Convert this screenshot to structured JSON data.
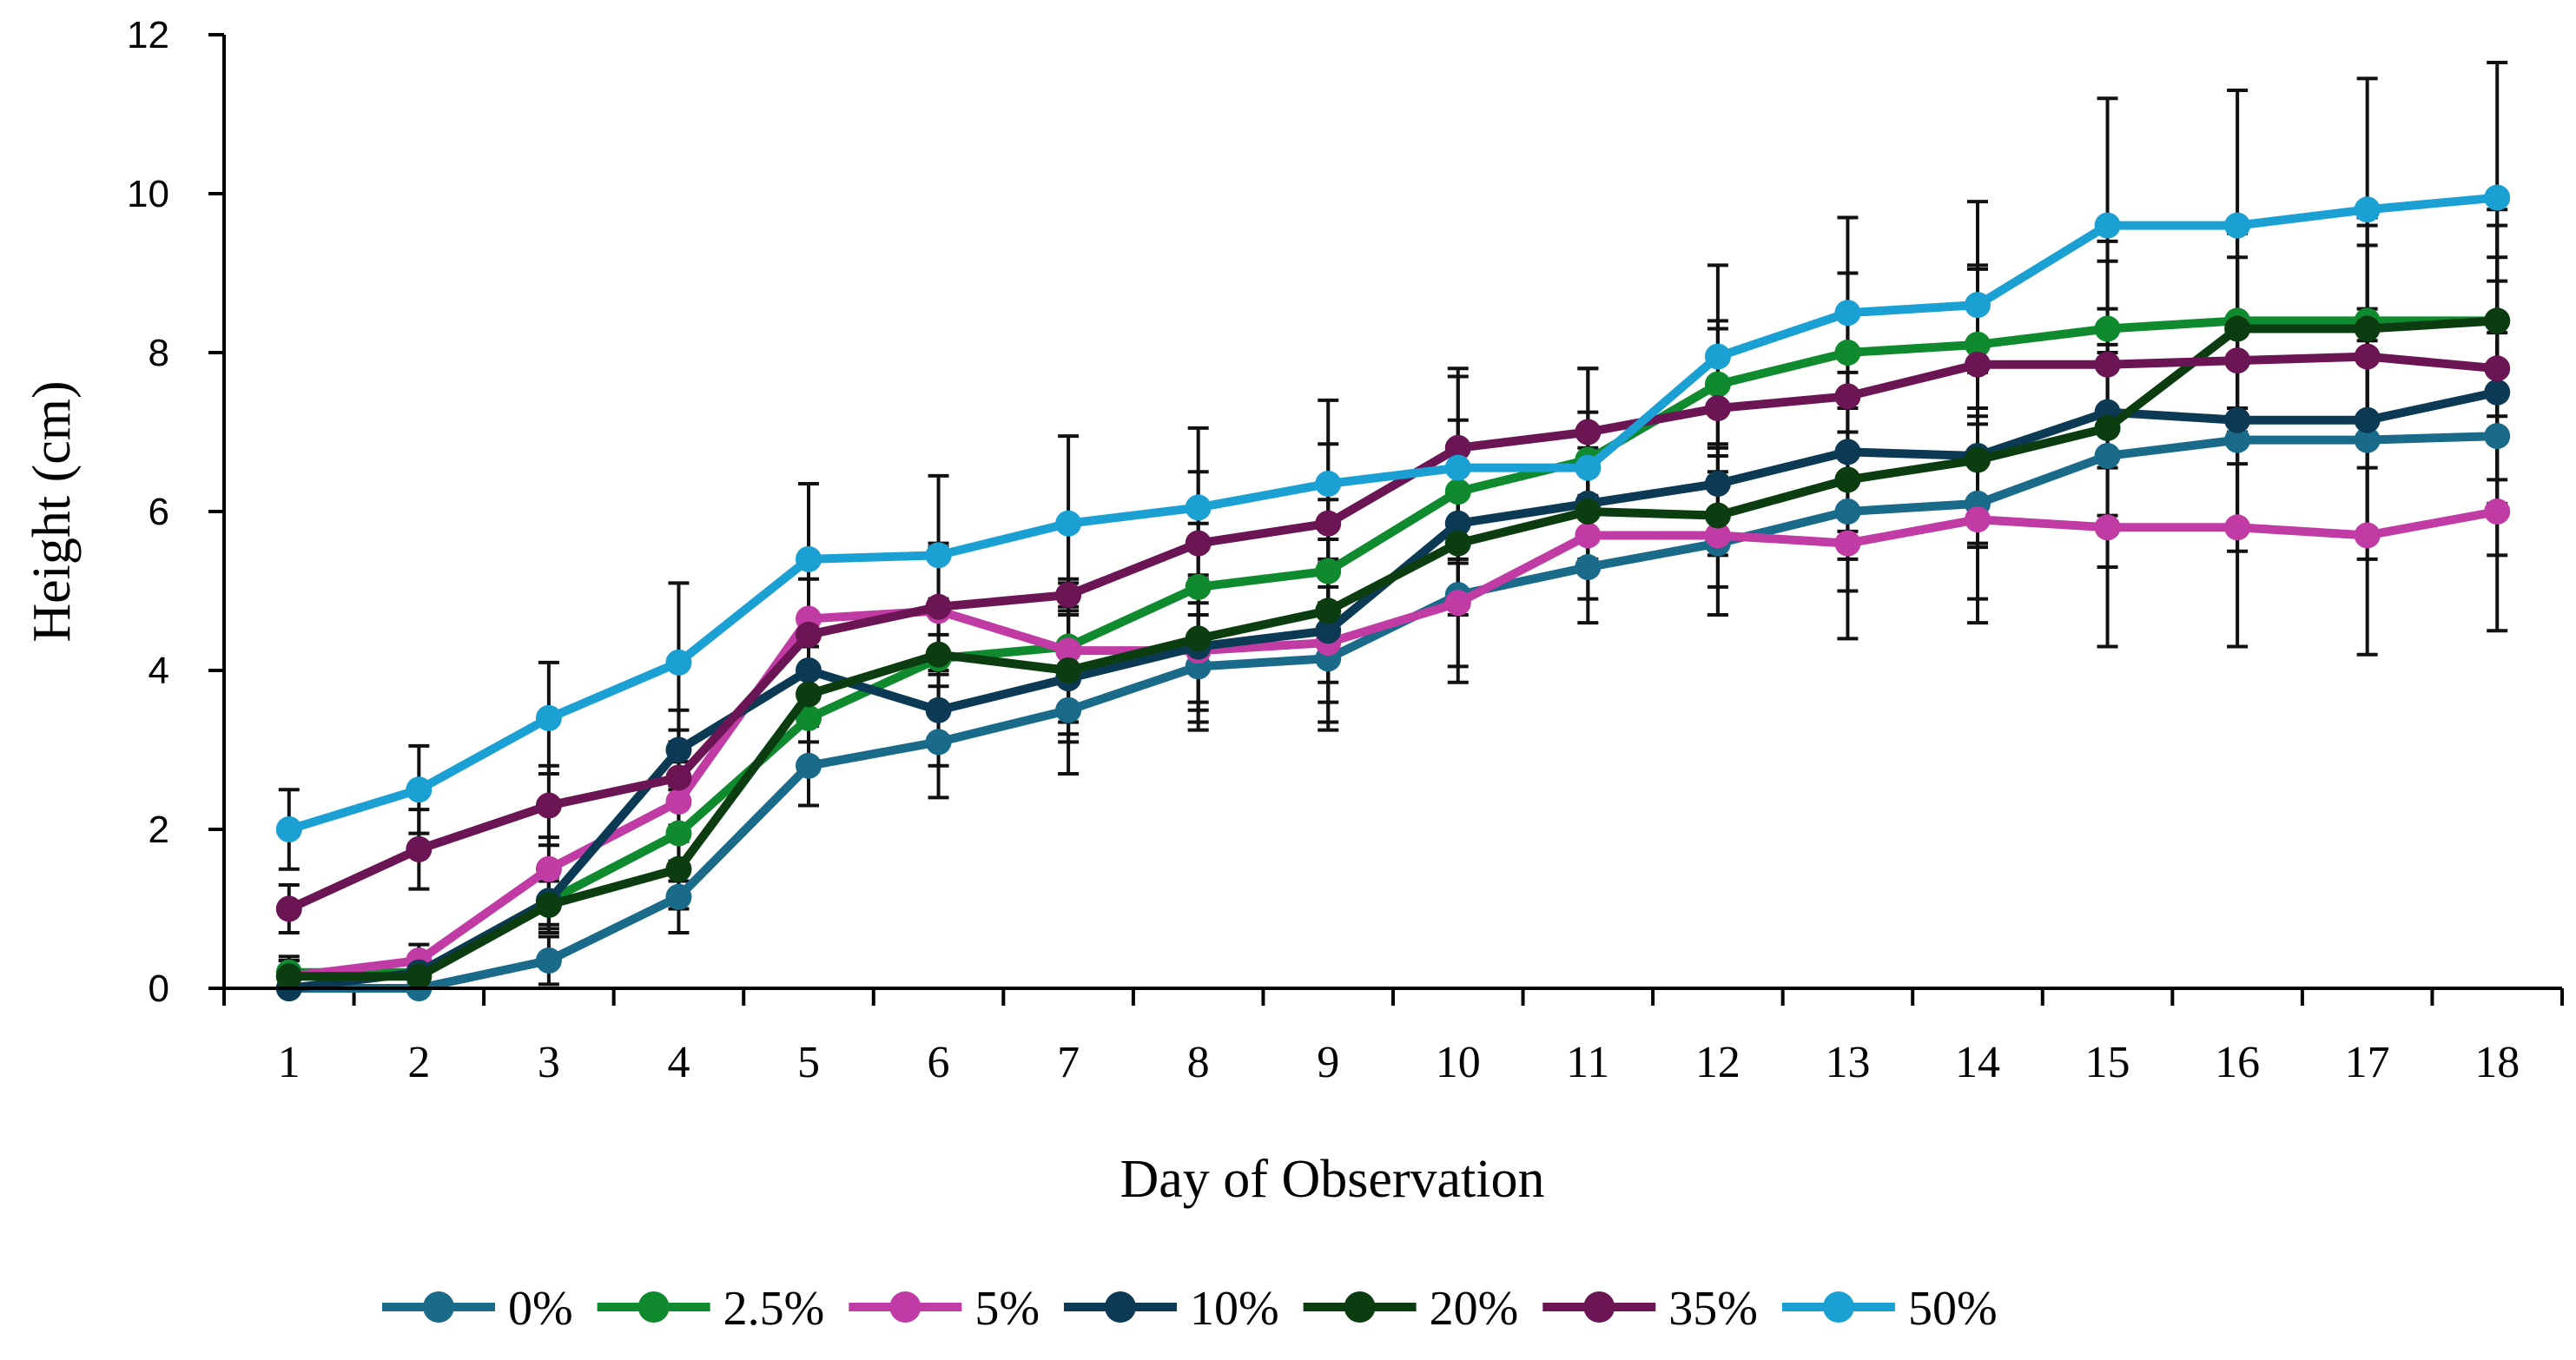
{
  "chart_data": {
    "type": "line",
    "title": "",
    "xlabel": "Day of Observation",
    "ylabel": "Height (cm)",
    "ylim": [
      0,
      12
    ],
    "yticks": [
      "0",
      "2",
      "4",
      "6",
      "8",
      "10",
      "12"
    ],
    "categories": [
      "1",
      "2",
      "3",
      "4",
      "5",
      "6",
      "7",
      "8",
      "9",
      "10",
      "11",
      "12",
      "13",
      "14",
      "15",
      "16",
      "17",
      "18"
    ],
    "grid": false,
    "legend_position": "bottom",
    "series": [
      {
        "name": "0%",
        "color": "#1a6a8a",
        "values": [
          0.0,
          0.0,
          0.35,
          1.15,
          2.8,
          3.1,
          3.5,
          4.05,
          4.15,
          4.95,
          5.3,
          5.6,
          6.0,
          6.1,
          6.7,
          6.9,
          6.9,
          6.95
        ],
        "errors": [
          0.2,
          0.2,
          0.3,
          0.45,
          0.5,
          0.7,
          0.8,
          0.8,
          0.9,
          0.9,
          0.7,
          0.9,
          1.0,
          1.2,
          1.4,
          1.4,
          1.5,
          1.5
        ]
      },
      {
        "name": "2.5%",
        "color": "#108a2e",
        "values": [
          0.2,
          0.2,
          1.1,
          1.95,
          3.4,
          4.15,
          4.3,
          5.05,
          5.25,
          6.25,
          6.65,
          7.6,
          8.0,
          8.1,
          8.3,
          8.4,
          8.4,
          8.4
        ],
        "errors": [
          0.2,
          0.2,
          0.3,
          0.6,
          0.6,
          0.7,
          0.8,
          0.8,
          0.9,
          0.9,
          0.6,
          0.8,
          1.0,
          1.0,
          1.1,
          1.1,
          1.2,
          1.2
        ]
      },
      {
        "name": "5%",
        "color": "#c13ba5",
        "values": [
          0.15,
          0.35,
          1.5,
          2.35,
          4.65,
          4.75,
          4.25,
          4.25,
          4.35,
          4.85,
          5.7,
          5.7,
          5.6,
          5.9,
          5.8,
          5.8,
          5.7,
          6.0
        ],
        "errors": [
          0.2,
          0.2,
          0.4,
          0.5,
          0.7,
          0.8,
          0.9,
          0.9,
          1.0,
          1.0,
          0.8,
          1.0,
          1.2,
          1.3,
          1.5,
          1.5,
          1.5,
          1.5
        ]
      },
      {
        "name": "10%",
        "color": "#0c3a55",
        "values": [
          0.0,
          0.2,
          1.1,
          3.0,
          4.0,
          3.5,
          3.9,
          4.3,
          4.5,
          5.85,
          6.1,
          6.35,
          6.75,
          6.7,
          7.25,
          7.15,
          7.15,
          7.5
        ],
        "errors": [
          0.2,
          0.2,
          0.4,
          0.5,
          0.6,
          0.7,
          0.8,
          0.8,
          0.9,
          0.9,
          0.7,
          0.9,
          1.0,
          1.1,
          1.3,
          1.3,
          1.4,
          1.4
        ]
      },
      {
        "name": "20%",
        "color": "#0b3d10",
        "values": [
          0.15,
          0.15,
          1.05,
          1.5,
          3.7,
          4.2,
          4.0,
          4.4,
          4.75,
          5.6,
          6.0,
          5.95,
          6.4,
          6.65,
          7.05,
          8.3,
          8.3,
          8.4
        ],
        "errors": [
          0.2,
          0.2,
          0.3,
          0.5,
          0.6,
          0.7,
          0.8,
          0.8,
          0.9,
          0.9,
          0.7,
          0.9,
          1.0,
          1.1,
          1.3,
          1.3,
          1.4,
          1.4
        ]
      },
      {
        "name": "35%",
        "color": "#6b1554",
        "values": [
          1.0,
          1.75,
          2.3,
          2.65,
          4.45,
          4.8,
          4.95,
          5.6,
          5.85,
          6.8,
          7.0,
          7.3,
          7.45,
          7.85,
          7.85,
          7.9,
          7.95,
          7.8
        ],
        "errors": [
          0.3,
          0.5,
          0.5,
          0.6,
          0.7,
          0.8,
          0.9,
          0.9,
          1.0,
          1.0,
          0.8,
          1.0,
          1.1,
          1.2,
          1.3,
          1.3,
          1.4,
          1.4
        ]
      },
      {
        "name": "50%",
        "color": "#1ba0d4",
        "values": [
          2.0,
          2.5,
          3.4,
          4.1,
          5.4,
          5.45,
          5.85,
          6.05,
          6.35,
          6.55,
          6.55,
          7.95,
          8.5,
          8.6,
          9.6,
          9.6,
          9.8,
          9.95
        ],
        "errors": [
          0.5,
          0.55,
          0.7,
          1.0,
          0.95,
          1.0,
          1.1,
          1.0,
          1.05,
          1.15,
          1.25,
          1.15,
          1.2,
          1.3,
          1.6,
          1.7,
          1.65,
          1.7
        ]
      }
    ]
  }
}
